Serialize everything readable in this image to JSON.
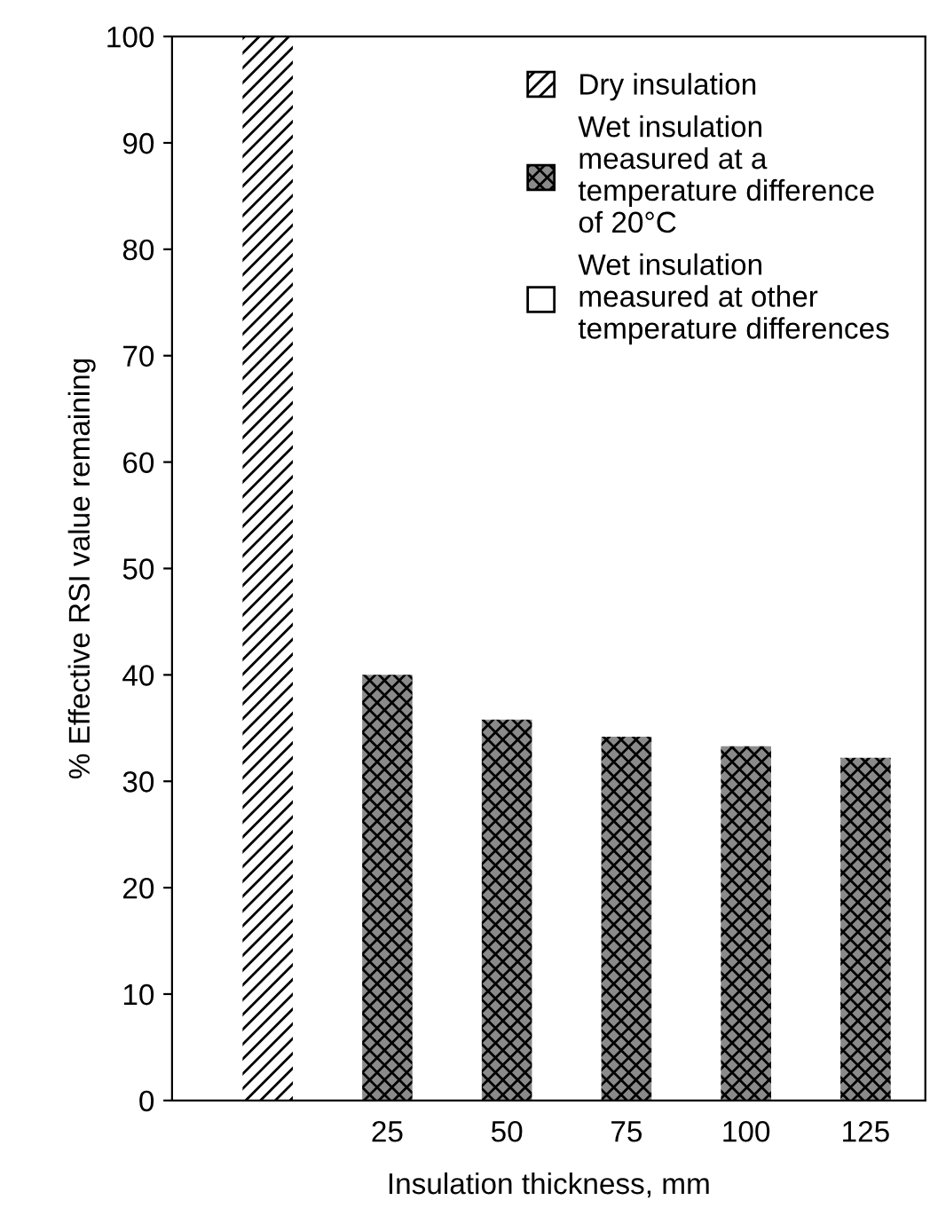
{
  "chart_data": {
    "type": "bar",
    "xlabel": "Insulation thickness, mm",
    "ylabel": "% Effective RSI value remaining",
    "categories": [
      null,
      "25",
      "50",
      "75",
      "100",
      "125"
    ],
    "series": [
      {
        "name": "Dry insulation",
        "color": "#ffffff",
        "values": [
          100,
          null,
          null,
          null,
          null,
          null
        ]
      },
      {
        "name": "Wet insulation\nmeasured at a\ntemperature difference\nof 20°C",
        "color": "#8a8a8a",
        "values": [
          null,
          40,
          35.8,
          34.2,
          33.3,
          32.2
        ]
      },
      {
        "name": "Wet insulation\nmeasured at other\ntemperature differences",
        "color": "#ffffff",
        "values": [
          null,
          null,
          null,
          null,
          null,
          null
        ]
      }
    ],
    "ylim": [
      0,
      100
    ],
    "yticks": [
      0,
      10,
      20,
      30,
      40,
      50,
      60,
      70,
      80,
      90,
      100
    ],
    "grid": false,
    "legend": "top right"
  }
}
